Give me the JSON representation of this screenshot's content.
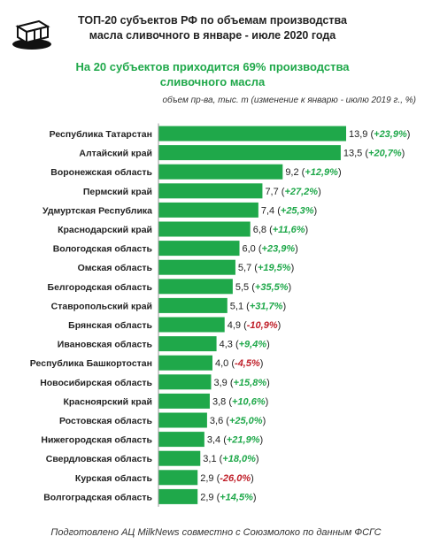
{
  "header": {
    "title_line1": "ТОП-20 субъектов РФ по объемам производства",
    "title_line2": "масла сливочного в январе - июле 2020 года",
    "subtitle_line1": "На 20 субъектов приходится 69% производства",
    "subtitle_line2": "сливочного масла",
    "unit_note": "объем пр-ва, тыс. т  (изменение к январю - июлю 2019 г., %)"
  },
  "footer": {
    "source": "Подготовлено АЦ MilkNews совместно с Союзмолоко по данным ФСГС"
  },
  "colors": {
    "bar": "#1fa84a",
    "positive": "#1fa84a",
    "negative": "#c0202a",
    "text": "#222222"
  },
  "logo_icon": "butter-block-icon",
  "chart_data": {
    "type": "bar",
    "orientation": "horizontal",
    "categories": [
      "Республика Татарстан",
      "Алтайский край",
      "Воронежская область",
      "Пермский край",
      "Удмуртская Республика",
      "Краснодарский край",
      "Вологодская область",
      "Омская область",
      "Белгородская область",
      "Ставропольский край",
      "Брянская область",
      "Ивановская область",
      "Республика Башкортостан",
      "Новосибирская область",
      "Красноярский край",
      "Ростовская область",
      "Нижегородская область",
      "Свердловская область",
      "Курская область",
      "Волгоградская область"
    ],
    "values": [
      13.9,
      13.5,
      9.2,
      7.7,
      7.4,
      6.8,
      6.0,
      5.7,
      5.5,
      5.1,
      4.9,
      4.3,
      4.0,
      3.9,
      3.8,
      3.6,
      3.4,
      3.1,
      2.9,
      2.9
    ],
    "value_labels": [
      "13,9",
      "13,5",
      "9,2",
      "7,7",
      "7,4",
      "6,8",
      "6,0",
      "5,7",
      "5,5",
      "5,1",
      "4,9",
      "4,3",
      "4,0",
      "3,9",
      "3,8",
      "3,6",
      "3,4",
      "3,1",
      "2,9",
      "2,9"
    ],
    "change_labels": [
      "+23,9%",
      "+20,7%",
      "+12,9%",
      "+27,2%",
      "+25,3%",
      "+11,6%",
      "+23,9%",
      "+19,5%",
      "+35,5%",
      "+31,7%",
      "-10,9%",
      "+9,4%",
      "-4,5%",
      "+15,8%",
      "+10,6%",
      "+25,0%",
      "+21,9%",
      "+18,0%",
      "-26,0%",
      "+14,5%"
    ],
    "changes": [
      23.9,
      20.7,
      12.9,
      27.2,
      25.3,
      11.6,
      23.9,
      19.5,
      35.5,
      31.7,
      -10.9,
      9.4,
      -4.5,
      15.8,
      10.6,
      25.0,
      21.9,
      18.0,
      -26.0,
      14.5
    ],
    "xlim": [
      0,
      13.9
    ],
    "grid": false,
    "legend": "none"
  }
}
